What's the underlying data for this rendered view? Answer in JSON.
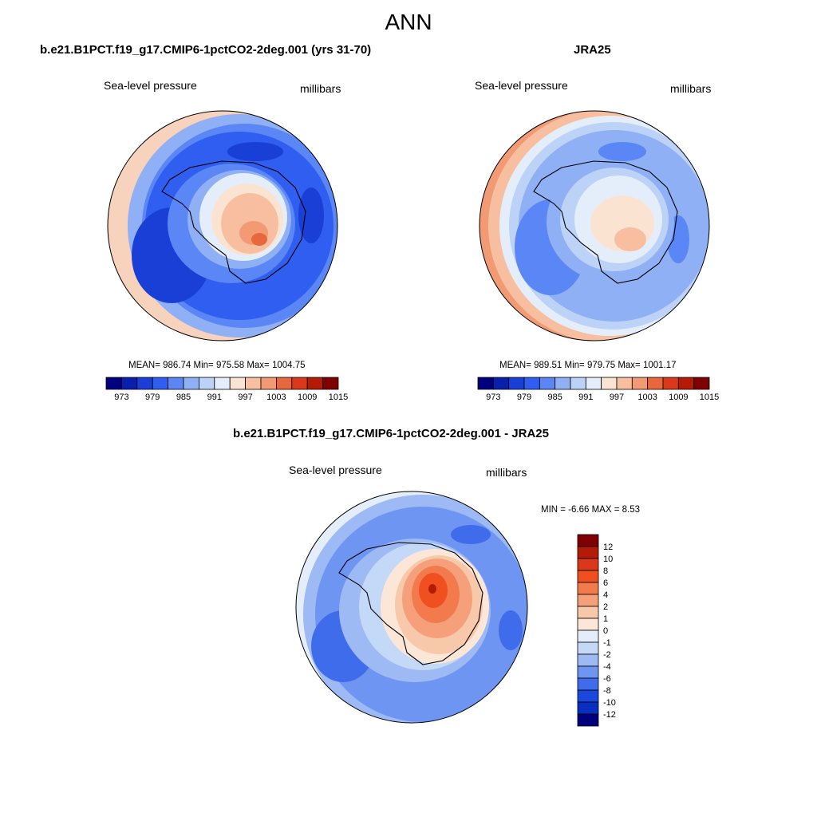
{
  "page_title": "ANN",
  "panels": [
    {
      "title": "b.e21.B1PCT.f19_g17.CMIP6-1pctCO2-2deg.001 (yrs 31-70)",
      "variable": "Sea-level pressure",
      "units": "millibars",
      "stats": "MEAN= 986.74  Min= 975.58  Max= 1004.75"
    },
    {
      "title": "JRA25",
      "variable": "Sea-level pressure",
      "units": "millibars",
      "stats": "MEAN= 989.51  Min= 979.75  Max= 1001.17"
    },
    {
      "title": "b.e21.B1PCT.f19_g17.CMIP6-1pctCO2-2deg.001 - JRA25",
      "variable": "Sea-level pressure",
      "units": "millibars",
      "stats": "MIN =  -6.66 MAX =   8.53"
    }
  ],
  "colorbar_top": {
    "colors": [
      "#00007f",
      "#0a1fad",
      "#1a3fd6",
      "#2f5ef0",
      "#5b86f5",
      "#8fb0f5",
      "#bcd2f7",
      "#e4eefa",
      "#fbe3d2",
      "#f7bfa0",
      "#f29a73",
      "#e8683d",
      "#d9391a",
      "#b31b06",
      "#7f0000"
    ],
    "labels": [
      "973",
      "979",
      "985",
      "991",
      "997",
      "1003",
      "1009",
      "1015"
    ]
  },
  "colorbar_diff": {
    "colors": [
      "#7f0000",
      "#b31b06",
      "#d9391a",
      "#f04f1f",
      "#f27a4c",
      "#f5a07a",
      "#f8c8aa",
      "#fbe6d8",
      "#e4eefa",
      "#c4d8f8",
      "#9dbaf5",
      "#6f95f2",
      "#3f6cea",
      "#1a47dc",
      "#0a2fc0",
      "#00007f"
    ],
    "labels": [
      "12",
      "10",
      "8",
      "6",
      "4",
      "2",
      "1",
      "0",
      "-1",
      "-2",
      "-4",
      "-6",
      "-8",
      "-10",
      "-12"
    ]
  }
}
